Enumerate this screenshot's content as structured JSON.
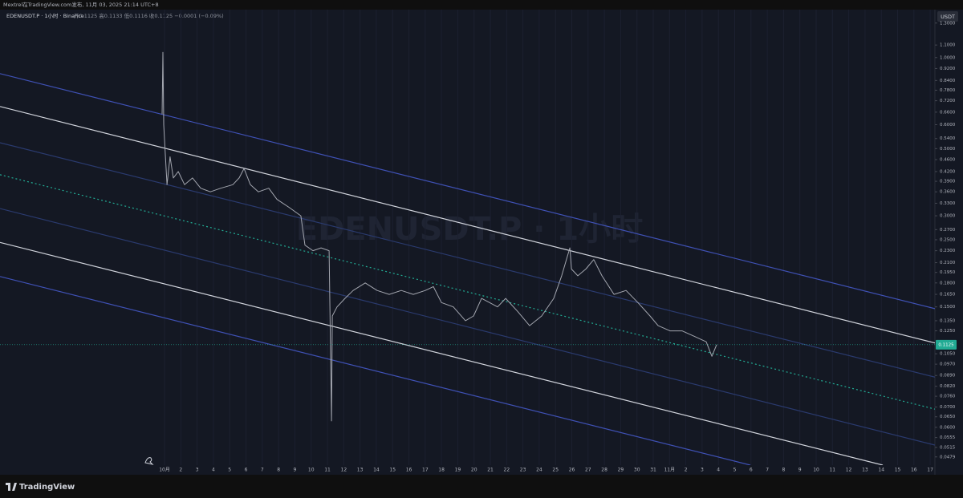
{
  "header": {
    "author_line": "Mextrel在TradingView.com发布, 11月 03, 2025 21:14 UTC+8",
    "brand": "TradingView"
  },
  "chart_data": {
    "type": "line",
    "title": "EDENUSDT.P · 1小时 · Binance",
    "subtitle": "开0.1125 高0.1133 低0.1116 收0.1125 −0.0001 (−0.09%)",
    "watermark": "EDENUSDT.P · 1小时",
    "currency": "USDT",
    "y_scale": "log",
    "grid": true,
    "color": "#a3a6af",
    "last_price": 0.1125,
    "last_price_color": "#22ab94",
    "x": [
      -0.15,
      -0.1,
      -0.05,
      0.05,
      0.15,
      0.34,
      0.54,
      0.84,
      1.23,
      1.72,
      2.22,
      2.81,
      3.45,
      4.19,
      4.58,
      4.88,
      5.27,
      5.76,
      6.4,
      6.9,
      7.64,
      8.37,
      8.62,
      9.11,
      9.61,
      10.1,
      10.25,
      10.3,
      10.59,
      11.08,
      11.58,
      12.32,
      13.05,
      13.79,
      14.53,
      15.27,
      16.01,
      16.5,
      17.0,
      17.73,
      18.47,
      18.97,
      19.46,
      19.95,
      20.44,
      20.94,
      21.67,
      22.41,
      23.15,
      23.89,
      24.38,
      24.88,
      24.98,
      25.37,
      25.86,
      26.35,
      26.85,
      27.59,
      28.33,
      29.06,
      29.8,
      30.3,
      31.03,
      31.77,
      32.51,
      33.25,
      33.6,
      33.89
    ],
    "values": [
      0.65,
      1.04,
      0.6,
      0.48,
      0.38,
      0.47,
      0.4,
      0.42,
      0.38,
      0.4,
      0.37,
      0.36,
      0.37,
      0.38,
      0.4,
      0.43,
      0.38,
      0.36,
      0.37,
      0.34,
      0.32,
      0.3,
      0.24,
      0.23,
      0.235,
      0.23,
      0.063,
      0.14,
      0.15,
      0.16,
      0.17,
      0.18,
      0.17,
      0.165,
      0.17,
      0.165,
      0.17,
      0.175,
      0.155,
      0.15,
      0.135,
      0.14,
      0.16,
      0.155,
      0.15,
      0.16,
      0.145,
      0.13,
      0.14,
      0.16,
      0.19,
      0.235,
      0.2,
      0.19,
      0.2,
      0.215,
      0.19,
      0.165,
      0.17,
      0.155,
      0.14,
      0.13,
      0.125,
      0.125,
      0.12,
      0.115,
      0.103,
      0.1125
    ],
    "drawings": [
      {
        "color": "#3f51b5",
        "style": "solid",
        "x": [
          -10.1,
          47.29
        ],
        "values": [
          0.885,
          0.148
        ]
      },
      {
        "color": "#d1d4dc",
        "style": "solid",
        "x": [
          -10.1,
          47.29
        ],
        "values": [
          0.689,
          0.114
        ]
      },
      {
        "color": "#2a3a6e",
        "style": "solid",
        "x": [
          -10.1,
          47.29
        ],
        "values": [
          0.523,
          0.0879
        ]
      },
      {
        "color": "#22ab94",
        "style": "dotted",
        "x": [
          -10.1,
          47.29
        ],
        "values": [
          0.41,
          0.0689
        ]
      },
      {
        "color": "#2a3a6e",
        "style": "solid",
        "x": [
          -10.1,
          47.29
        ],
        "values": [
          0.317,
          0.0524
        ]
      },
      {
        "color": "#d1d4dc",
        "style": "solid",
        "x": [
          -10.1,
          44.09
        ],
        "values": [
          0.245,
          0.045
        ]
      },
      {
        "color": "#3f51b5",
        "style": "solid",
        "x": [
          -10.1,
          35.96
        ],
        "values": [
          0.189,
          0.045
        ]
      }
    ],
    "xlim": [
      -10.1,
      47.29
    ],
    "ylim": [
      0.045,
      1.44
    ],
    "xticks": [
      {
        "value": 0,
        "label": "10月"
      },
      {
        "value": 1,
        "label": "2"
      },
      {
        "value": 2,
        "label": "3"
      },
      {
        "value": 3,
        "label": "4"
      },
      {
        "value": 4,
        "label": "5"
      },
      {
        "value": 5,
        "label": "6"
      },
      {
        "value": 6,
        "label": "7"
      },
      {
        "value": 7,
        "label": "8"
      },
      {
        "value": 8,
        "label": "9"
      },
      {
        "value": 9,
        "label": "10"
      },
      {
        "value": 10,
        "label": "11"
      },
      {
        "value": 11,
        "label": "12"
      },
      {
        "value": 12,
        "label": "13"
      },
      {
        "value": 13,
        "label": "14"
      },
      {
        "value": 14,
        "label": "15"
      },
      {
        "value": 15,
        "label": "16"
      },
      {
        "value": 16,
        "label": "17"
      },
      {
        "value": 17,
        "label": "18"
      },
      {
        "value": 18,
        "label": "19"
      },
      {
        "value": 19,
        "label": "20"
      },
      {
        "value": 20,
        "label": "21"
      },
      {
        "value": 21,
        "label": "22"
      },
      {
        "value": 22,
        "label": "23"
      },
      {
        "value": 23,
        "label": "24"
      },
      {
        "value": 24,
        "label": "25"
      },
      {
        "value": 25,
        "label": "26"
      },
      {
        "value": 26,
        "label": "27"
      },
      {
        "value": 27,
        "label": "28"
      },
      {
        "value": 28,
        "label": "29"
      },
      {
        "value": 29,
        "label": "30"
      },
      {
        "value": 30,
        "label": "31"
      },
      {
        "value": 31,
        "label": "11月"
      },
      {
        "value": 32,
        "label": "2"
      },
      {
        "value": 33,
        "label": "3"
      },
      {
        "value": 34,
        "label": "4"
      },
      {
        "value": 35,
        "label": "5"
      },
      {
        "value": 36,
        "label": "6"
      },
      {
        "value": 37,
        "label": "7"
      },
      {
        "value": 38,
        "label": "8"
      },
      {
        "value": 39,
        "label": "9"
      },
      {
        "value": 40,
        "label": "10"
      },
      {
        "value": 41,
        "label": "11"
      },
      {
        "value": 42,
        "label": "12"
      },
      {
        "value": 43,
        "label": "13"
      },
      {
        "value": 44,
        "label": "14"
      },
      {
        "value": 45,
        "label": "15"
      },
      {
        "value": 46,
        "label": "16"
      },
      {
        "value": 47,
        "label": "17"
      }
    ],
    "yticks": [
      {
        "value": 1.3,
        "label": "1.3000"
      },
      {
        "value": 1.1,
        "label": "1.1000"
      },
      {
        "value": 1.0,
        "label": "1.0000"
      },
      {
        "value": 0.92,
        "label": "0.9200"
      },
      {
        "value": 0.84,
        "label": "0.8400"
      },
      {
        "value": 0.78,
        "label": "0.7800"
      },
      {
        "value": 0.72,
        "label": "0.7200"
      },
      {
        "value": 0.66,
        "label": "0.6600"
      },
      {
        "value": 0.6,
        "label": "0.6000"
      },
      {
        "value": 0.54,
        "label": "0.5400"
      },
      {
        "value": 0.5,
        "label": "0.5000"
      },
      {
        "value": 0.46,
        "label": "0.4600"
      },
      {
        "value": 0.42,
        "label": "0.4200"
      },
      {
        "value": 0.39,
        "label": "0.3900"
      },
      {
        "value": 0.36,
        "label": "0.3600"
      },
      {
        "value": 0.33,
        "label": "0.3300"
      },
      {
        "value": 0.3,
        "label": "0.3000"
      },
      {
        "value": 0.27,
        "label": "0.2700"
      },
      {
        "value": 0.25,
        "label": "0.2500"
      },
      {
        "value": 0.23,
        "label": "0.2300"
      },
      {
        "value": 0.21,
        "label": "0.2100"
      },
      {
        "value": 0.195,
        "label": "0.1950"
      },
      {
        "value": 0.18,
        "label": "0.1800"
      },
      {
        "value": 0.165,
        "label": "0.1650"
      },
      {
        "value": 0.15,
        "label": "0.1500"
      },
      {
        "value": 0.135,
        "label": "0.1350"
      },
      {
        "value": 0.125,
        "label": "0.1250"
      },
      {
        "value": 0.105,
        "label": "0.1050"
      },
      {
        "value": 0.097,
        "label": "0.0970"
      },
      {
        "value": 0.089,
        "label": "0.0890"
      },
      {
        "value": 0.082,
        "label": "0.0820"
      },
      {
        "value": 0.076,
        "label": "0.0760"
      },
      {
        "value": 0.07,
        "label": "0.0700"
      },
      {
        "value": 0.065,
        "label": "0.0650"
      },
      {
        "value": 0.06,
        "label": "0.0600"
      },
      {
        "value": 0.0555,
        "label": "0.0555"
      },
      {
        "value": 0.0515,
        "label": "0.0515"
      },
      {
        "value": 0.0479,
        "label": "0.0479"
      }
    ]
  }
}
